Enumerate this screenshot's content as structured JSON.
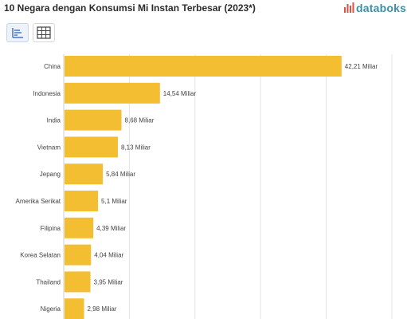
{
  "header": {
    "title": "10 Negara dengan Konsumsi Mi Instan Terbesar (2023*)",
    "brand": "databoks"
  },
  "toolbar": {
    "chart_view_icon": "bar-chart-icon",
    "table_view_icon": "table-grid-icon"
  },
  "colors": {
    "bar": "#F3BE32",
    "grid": "#e3e3e3",
    "brand": "#3e8fa3",
    "brand_accent": "#e0503c"
  },
  "chart_data": {
    "type": "bar",
    "orientation": "horizontal",
    "title": "10 Negara dengan Konsumsi Mi Instan Terbesar (2023*)",
    "categories": [
      "China",
      "Indonesia",
      "India",
      "Vietnam",
      "Jepang",
      "Amerika Serikat",
      "Filipina",
      "Korea Selatan",
      "Thailand",
      "Nigeria"
    ],
    "values": [
      42.21,
      14.54,
      8.68,
      8.13,
      5.84,
      5.1,
      4.39,
      4.04,
      3.95,
      2.98
    ],
    "value_labels": [
      "42,21 Miliar",
      "14,54 Miliar",
      "8,68 Miliar",
      "8,13 Miliar",
      "5,84 Miliar",
      "5,1 Miliar",
      "4,39 Miliar",
      "4,04 Miliar",
      "3,95 Miliar",
      "2,98 Miliar"
    ],
    "xlim": [
      0,
      50
    ],
    "grid": true,
    "legend": "none"
  }
}
